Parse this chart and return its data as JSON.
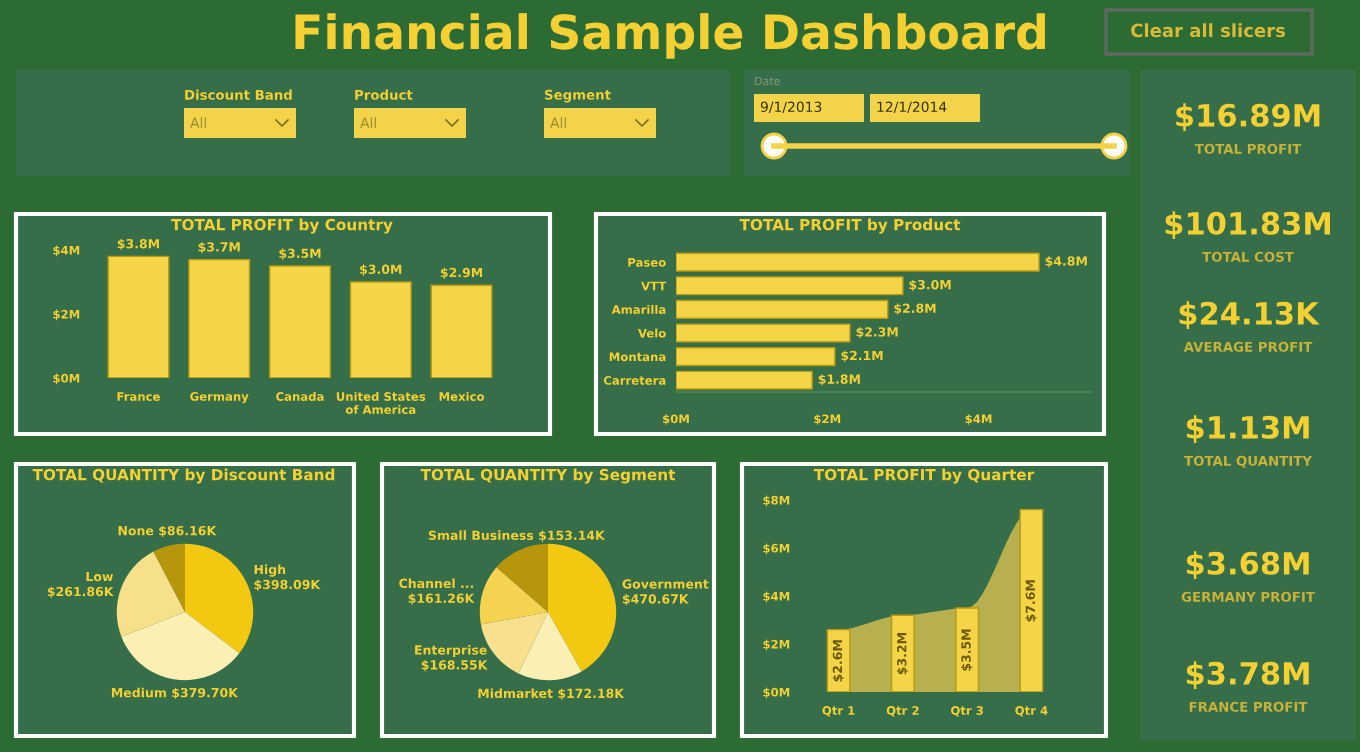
{
  "chart_data": [
    {
      "type": "other",
      "title": "Financial Sample Dashboard",
      "annotations": [
        "Clear all slicers",
        "Discount Band",
        "All",
        "Product",
        "All",
        "Segment",
        "All",
        "Date",
        "9/1/2013",
        "12/1/2014"
      ]
    },
    {
      "type": "bar",
      "title": "TOTAL PROFIT by Country",
      "categories": [
        "France",
        "Germany",
        "Canada",
        "United States of America",
        "Mexico"
      ],
      "values": [
        3.8,
        3.7,
        3.5,
        3.0,
        2.9
      ],
      "value_labels": [
        "$3.8M",
        "$3.7M",
        "$3.5M",
        "$3.0M",
        "$2.9M"
      ],
      "color": "#f5d547",
      "ylim": [
        0,
        4
      ],
      "yticks": [
        {
          "value": 0,
          "label": "$0M"
        },
        {
          "value": 2,
          "label": "$2M"
        },
        {
          "value": 4,
          "label": "$4M"
        }
      ],
      "grid": false,
      "legend": false
    },
    {
      "type": "bar",
      "orientation": "horizontal",
      "title": "TOTAL PROFIT by Product",
      "categories": [
        "Paseo",
        "VTT",
        "Amarilla",
        "Velo",
        "Montana",
        "Carretera"
      ],
      "values": [
        4.8,
        3.0,
        2.8,
        2.3,
        2.1,
        1.8
      ],
      "value_labels": [
        "$4.8M",
        "$3.0M",
        "$2.8M",
        "$2.3M",
        "$2.1M",
        "$1.8M"
      ],
      "color": "#f5d547",
      "xlim": [
        0,
        5.5
      ],
      "xticks": [
        {
          "value": 0,
          "label": "$0M"
        },
        {
          "value": 2,
          "label": "$2M"
        },
        {
          "value": 4,
          "label": "$4M"
        }
      ],
      "grid": false,
      "legend": false
    },
    {
      "type": "pie",
      "title": "TOTAL QUANTITY by Discount Band",
      "categories": [
        "High",
        "Medium",
        "Low",
        "None"
      ],
      "values": [
        398.09,
        379.7,
        261.86,
        86.16
      ],
      "value_labels": [
        "$398.09K",
        "$379.70K",
        "$261.86K",
        "$86.16K"
      ],
      "colors": [
        "#f2c811",
        "#fcefb4",
        "#f7e08a",
        "#b8960c"
      ],
      "legend": false
    },
    {
      "type": "pie",
      "title": "TOTAL QUANTITY by Segment",
      "categories": [
        "Government",
        "Midmarket",
        "Enterprise",
        "Channel ...",
        "Small Business"
      ],
      "values": [
        470.67,
        172.18,
        168.55,
        161.26,
        153.14
      ],
      "value_labels": [
        "$470.67K",
        "$172.18K",
        "$168.55K",
        "$161.26K",
        "$153.14K"
      ],
      "colors": [
        "#f2c811",
        "#fcefb4",
        "#f8e08e",
        "#f5d350",
        "#b8960c"
      ],
      "legend": false
    },
    {
      "type": "bar",
      "title": "TOTAL PROFIT by Quarter",
      "categories": [
        "Qtr 1",
        "Qtr 2",
        "Qtr 3",
        "Qtr 4"
      ],
      "ylim": [
        0,
        8
      ],
      "yticks": [
        {
          "value": 0,
          "label": "$0M"
        },
        {
          "value": 2,
          "label": "$2M"
        },
        {
          "value": 4,
          "label": "$4M"
        },
        {
          "value": 6,
          "label": "$6M"
        },
        {
          "value": 8,
          "label": "$8M"
        }
      ],
      "grid": false,
      "legend": false,
      "series": [
        {
          "type": "area",
          "color": "#b8b04e",
          "values": [
            2.6,
            3.2,
            3.5,
            7.6
          ]
        },
        {
          "type": "bar",
          "color": "#f5d547",
          "values": [
            2.6,
            3.2,
            3.5,
            7.6
          ],
          "value_labels": [
            "$2.6M",
            "$3.2M",
            "$3.5M",
            "$7.6M"
          ]
        }
      ]
    },
    {
      "type": "other",
      "annotations": [
        "$16.89M",
        "TOTAL PROFIT",
        "$101.83M",
        "TOTAL COST",
        "$24.13K",
        "AVERAGE PROFIT",
        "$1.13M",
        "TOTAL QUANTITY",
        "$3.68M",
        "GERMANY PROFIT",
        "$3.78M",
        "FRANCE PROFIT"
      ]
    }
  ]
}
